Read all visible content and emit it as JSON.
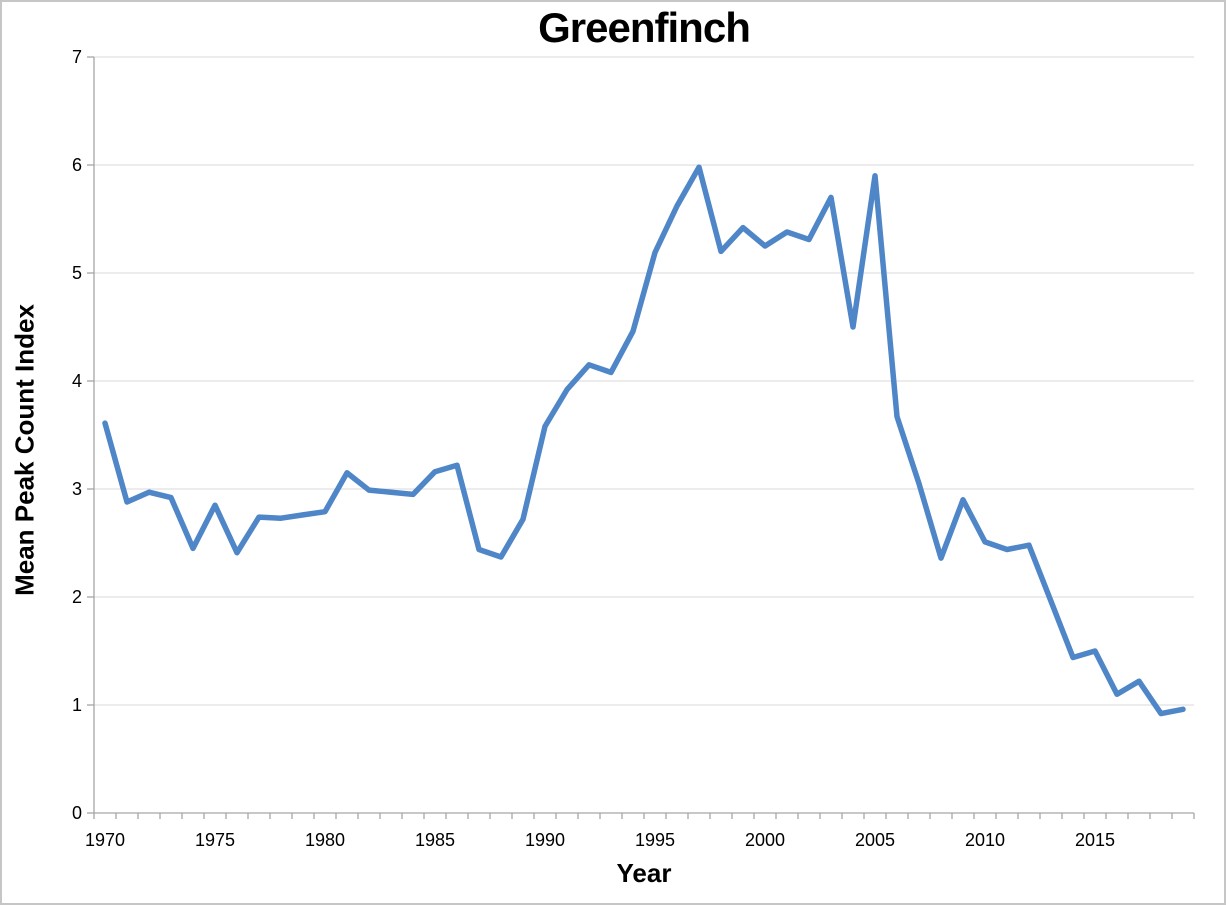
{
  "chart_data": {
    "type": "line",
    "title": "Greenfinch",
    "xlabel": "Year",
    "ylabel": "Mean Peak Count Index",
    "x": [
      1970,
      1971,
      1972,
      1973,
      1974,
      1975,
      1976,
      1977,
      1978,
      1979,
      1980,
      1981,
      1982,
      1983,
      1984,
      1985,
      1986,
      1987,
      1988,
      1989,
      1990,
      1991,
      1992,
      1993,
      1994,
      1995,
      1996,
      1997,
      1998,
      1999,
      2000,
      2001,
      2002,
      2003,
      2004,
      2005,
      2006,
      2007,
      2008,
      2009,
      2010,
      2011,
      2012,
      2013,
      2014,
      2015,
      2016,
      2017,
      2018,
      2019
    ],
    "values": [
      3.61,
      2.88,
      2.97,
      2.92,
      2.45,
      2.85,
      2.41,
      2.74,
      2.73,
      2.76,
      2.79,
      3.15,
      2.99,
      2.97,
      2.95,
      3.16,
      3.22,
      2.44,
      2.37,
      2.72,
      3.58,
      3.92,
      4.15,
      4.08,
      4.46,
      5.19,
      5.62,
      5.98,
      5.2,
      5.42,
      5.25,
      5.38,
      5.31,
      5.7,
      4.5,
      5.9,
      3.67,
      3.05,
      2.36,
      2.9,
      2.51,
      2.44,
      2.48,
      1.96,
      1.44,
      1.5,
      1.1,
      1.22,
      0.92,
      0.96
    ],
    "xlim": [
      1969.5,
      2019.5
    ],
    "ylim": [
      0,
      7
    ],
    "x_tick_labels": [
      1970,
      1975,
      1980,
      1985,
      1990,
      1995,
      2000,
      2005,
      2010,
      2015
    ],
    "x_minor_tick_step": 1,
    "y_ticks": [
      0,
      1,
      2,
      3,
      4,
      5,
      6,
      7
    ],
    "grid": "horizontal",
    "legend": "none",
    "line_color": "#4f86c8",
    "line_width": 5.5,
    "gridline_color": "#d9d9d9",
    "axis_color": "#a6a6a6",
    "text_color": "#000000",
    "frame_border_color": "#c6c6c6"
  }
}
